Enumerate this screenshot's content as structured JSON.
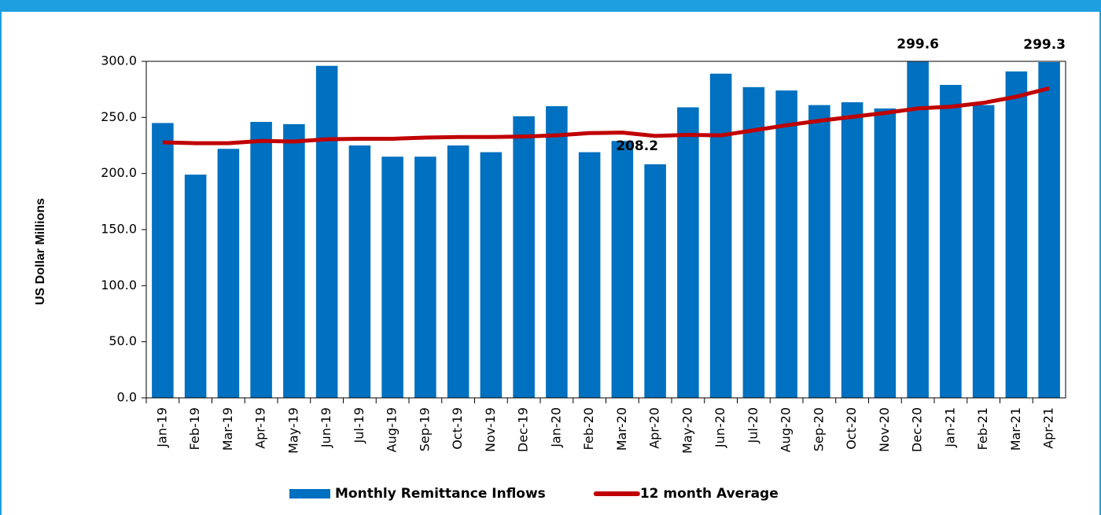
{
  "chart_data": {
    "type": "bar_line",
    "y_label": "US Dollar Millions",
    "categories": [
      "Jan-19",
      "Feb-19",
      "Mar-19",
      "Apr-19",
      "May-19",
      "Jun-19",
      "Jul-19",
      "Aug-19",
      "Sep-19",
      "Oct-19",
      "Nov-19",
      "Dec-19",
      "Jan-20",
      "Feb-20",
      "Mar-20",
      "Apr-20",
      "May-20",
      "Jun-20",
      "Jul-20",
      "Aug-20",
      "Sep-20",
      "Oct-20",
      "Nov-20",
      "Dec-20",
      "Jan-21",
      "Feb-21",
      "Mar-21",
      "Apr-21"
    ],
    "series": [
      {
        "name": "Monthly Remittance Inflows",
        "type": "bar",
        "color": "#0070c0",
        "values": [
          245,
          199,
          222,
          246,
          244,
          296,
          225,
          215,
          215,
          225,
          219,
          251,
          260,
          219,
          229,
          208.2,
          259,
          289,
          277,
          274,
          261,
          263.5,
          258,
          299.6,
          279,
          261,
          291,
          299.3
        ],
        "value_labels": [
          null,
          null,
          null,
          null,
          null,
          null,
          null,
          null,
          null,
          null,
          null,
          null,
          null,
          null,
          null,
          "208.2",
          null,
          null,
          null,
          null,
          null,
          null,
          null,
          "299.6",
          null,
          null,
          null,
          "299.3"
        ]
      },
      {
        "name": "12 month Average",
        "type": "line",
        "color": "#c00000",
        "values": [
          227.8,
          227,
          227,
          229,
          228.5,
          230.5,
          231,
          231,
          232,
          232.5,
          232.5,
          233,
          234,
          236,
          236.5,
          233.5,
          234.5,
          234,
          238.5,
          243,
          247,
          250.5,
          254,
          258,
          259.5,
          263,
          268.5,
          276
        ]
      }
    ],
    "ylim": [
      0,
      300
    ],
    "yticks": [
      {
        "value": 0,
        "label": "0.0"
      },
      {
        "value": 50,
        "label": "50.0"
      },
      {
        "value": 100,
        "label": "100.0"
      },
      {
        "value": 150,
        "label": "150.0"
      },
      {
        "value": 200,
        "label": "200.0"
      },
      {
        "value": 250,
        "label": "250.0"
      },
      {
        "value": 300,
        "label": "300.0"
      }
    ],
    "grid": false
  }
}
